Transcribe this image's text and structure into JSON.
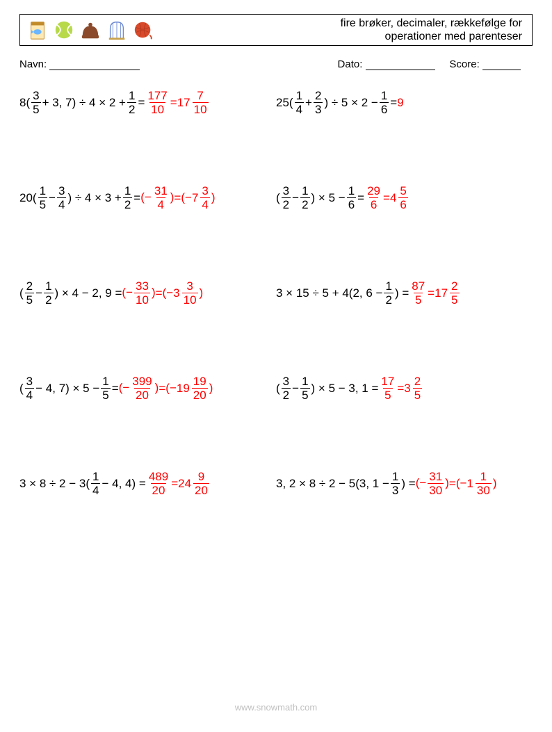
{
  "title_line1": "fire brøker, decimaler, rækkefølge for",
  "title_line2": "operationer med parenteser",
  "labels": {
    "name": "Navn:",
    "date": "Dato:",
    "score": "Score:"
  },
  "footer": "www.snowmath.com",
  "colors": {
    "answer": "#ff0000",
    "text": "#000000",
    "footer": "#c0c0c0"
  },
  "icons": {
    "fishfood": {
      "body": "#ffe9b3",
      "label": "#6bb6ff",
      "outline": "#c28b2a"
    },
    "ball": {
      "fill": "#b7d94a",
      "line": "#ffffff"
    },
    "beanie": {
      "fill": "#8b4a2b"
    },
    "cage": {
      "line": "#6d8bd4",
      "base": "#c9a24a"
    },
    "yarn": {
      "fill": "#d84a2b"
    }
  },
  "problems": [
    [
      {
        "pre": "8(",
        "f1": [
          "3",
          "5"
        ],
        "mid": " + 3, 7) ÷ 4 × 2 + ",
        "f2": [
          "1",
          "2"
        ],
        "post": " = ",
        "ans_f": [
          "177",
          "10"
        ],
        "ans_eq": " = ",
        "mix": [
          "17",
          "7",
          "10"
        ]
      },
      {
        "pre": "25(",
        "f1": [
          "1",
          "4"
        ],
        "mid": " + ",
        "f2": [
          "2",
          "3"
        ],
        "post": ") ÷ 5 × 2 − ",
        "f3": [
          "1",
          "6"
        ],
        "post2": " = ",
        "ans_plain": "9"
      }
    ],
    [
      {
        "pre": "20(",
        "f1": [
          "1",
          "5"
        ],
        "mid": " − ",
        "f2": [
          "3",
          "4"
        ],
        "post": ") ÷ 4 × 3 + ",
        "f3": [
          "1",
          "2"
        ],
        "post2": " = ",
        "ans_neg_f": [
          "31",
          "4"
        ],
        "ans_eq": " = ",
        "neg_mix": [
          "7",
          "3",
          "4"
        ]
      },
      {
        "pre": "(",
        "f1": [
          "3",
          "2"
        ],
        "mid": " − ",
        "f2": [
          "1",
          "2"
        ],
        "post": ") × 5 − ",
        "f3": [
          "1",
          "6"
        ],
        "post2": " = ",
        "ans_f": [
          "29",
          "6"
        ],
        "ans_eq": " = ",
        "mix": [
          "4",
          "5",
          "6"
        ]
      }
    ],
    [
      {
        "pre": "(",
        "f1": [
          "2",
          "5"
        ],
        "mid": " − ",
        "f2": [
          "1",
          "2"
        ],
        "post": ") × 4 − 2, 9 = ",
        "ans_neg_f": [
          "33",
          "10"
        ],
        "ans_eq": " = ",
        "neg_mix": [
          "3",
          "3",
          "10"
        ]
      },
      {
        "pre": "3 × 15 ÷ 5 + 4(2, 6 − ",
        "f1": [
          "1",
          "2"
        ],
        "post": ") = ",
        "ans_f": [
          "87",
          "5"
        ],
        "ans_eq": " = ",
        "mix": [
          "17",
          "2",
          "5"
        ]
      }
    ],
    [
      {
        "pre": "(",
        "f1": [
          "3",
          "4"
        ],
        "mid": " − 4, 7) × 5 − ",
        "f2": [
          "1",
          "5"
        ],
        "post": " = ",
        "ans_neg_f": [
          "399",
          "20"
        ],
        "ans_eq": " = ",
        "neg_mix": [
          "19",
          "19",
          "20"
        ]
      },
      {
        "pre": "(",
        "f1": [
          "3",
          "2"
        ],
        "mid": " − ",
        "f2": [
          "1",
          "5"
        ],
        "post": ") × 5 − 3, 1 = ",
        "ans_f": [
          "17",
          "5"
        ],
        "ans_eq": " = ",
        "mix": [
          "3",
          "2",
          "5"
        ]
      }
    ],
    [
      {
        "pre": "3 × 8 ÷ 2 − 3(",
        "f1": [
          "1",
          "4"
        ],
        "mid": " − 4, 4) = ",
        "ans_f": [
          "489",
          "20"
        ],
        "ans_eq": " = ",
        "mix": [
          "24",
          "9",
          "20"
        ]
      },
      {
        "pre": "3, 2 × 8 ÷ 2 − 5(3, 1 − ",
        "f1": [
          "1",
          "3"
        ],
        "post": ") = ",
        "ans_neg_f": [
          "31",
          "30"
        ],
        "ans_eq": " = ",
        "neg_mix": [
          "1",
          "1",
          "30"
        ]
      }
    ]
  ]
}
